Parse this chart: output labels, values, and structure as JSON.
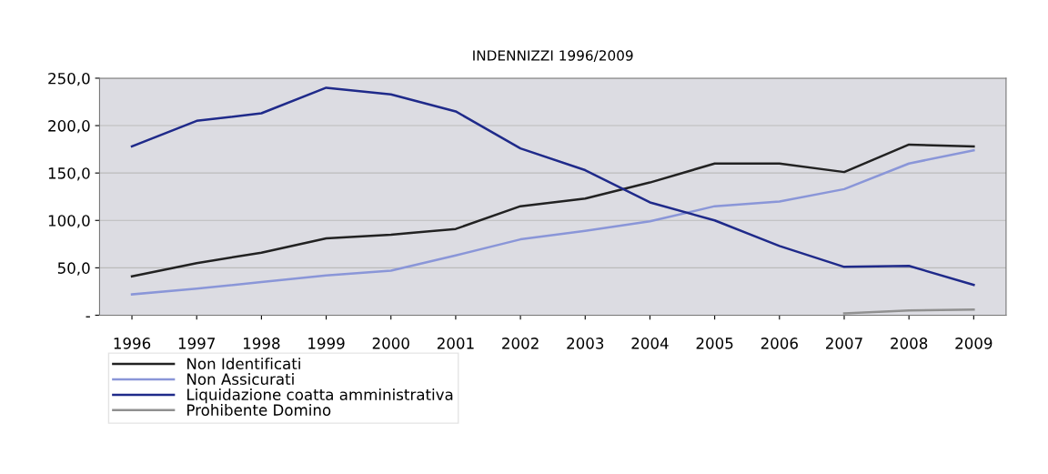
{
  "chart_data": {
    "type": "line",
    "title": "INDENNIZZI 1996/2009",
    "categories": [
      "1996",
      "1997",
      "1998",
      "1999",
      "2000",
      "2001",
      "2002",
      "2003",
      "2004",
      "2005",
      "2006",
      "2007",
      "2008",
      "2009"
    ],
    "series": [
      {
        "name": "Non Identificati",
        "color": "#222222",
        "values": [
          41,
          55,
          66,
          81,
          85,
          91,
          115,
          123,
          140,
          160,
          160,
          151,
          180,
          178
        ]
      },
      {
        "name": "Non Assicurati",
        "color": "#8a96d8",
        "values": [
          22,
          28,
          35,
          42,
          47,
          63,
          80,
          89,
          99,
          115,
          120,
          133,
          160,
          174
        ]
      },
      {
        "name": "Liquidazione coatta amministrativa",
        "color": "#1f2a8a",
        "values": [
          178,
          205,
          213,
          240,
          233,
          215,
          176,
          153,
          119,
          100,
          73,
          51,
          52,
          32
        ]
      },
      {
        "name": "Prohibente Domino",
        "color": "#909090",
        "values": [
          null,
          null,
          null,
          null,
          null,
          null,
          null,
          null,
          null,
          null,
          null,
          2,
          5,
          6
        ]
      }
    ],
    "ylim": [
      0,
      250
    ],
    "yticks": [
      {
        "value": 0,
        "label": "-"
      },
      {
        "value": 50,
        "label": "50,0"
      },
      {
        "value": 100,
        "label": "100,0"
      },
      {
        "value": 150,
        "label": "150,0"
      },
      {
        "value": 200,
        "label": "200,0"
      },
      {
        "value": 250,
        "label": "250,0"
      }
    ],
    "grid": "y",
    "legend": "bottom",
    "line_style": "solid",
    "marker": "none"
  }
}
